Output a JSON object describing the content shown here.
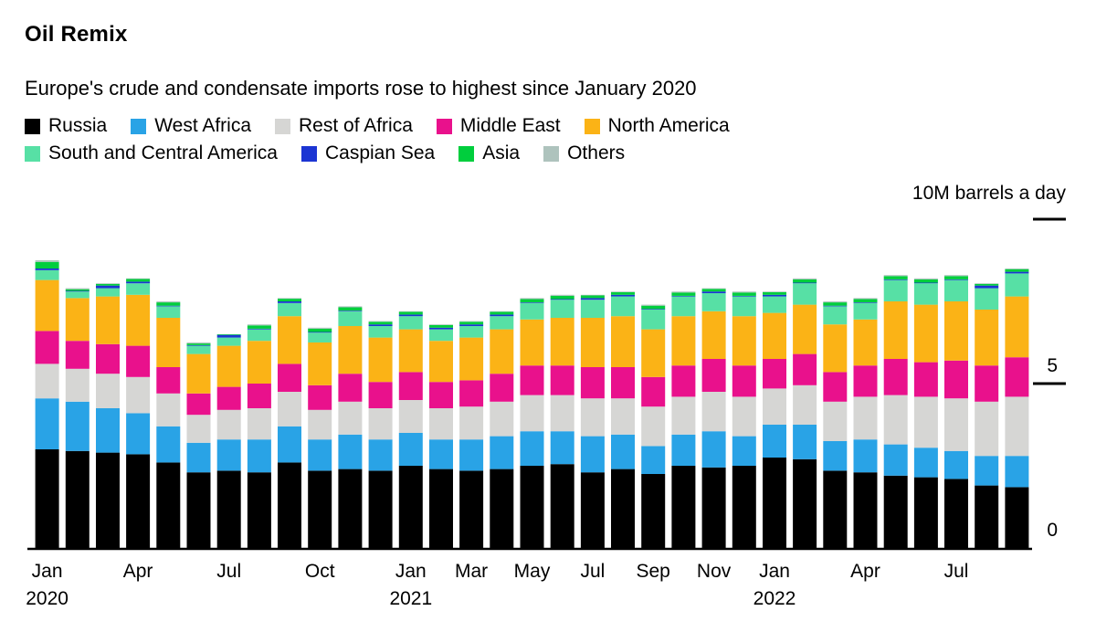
{
  "chart_data": {
    "type": "bar",
    "stacked": true,
    "title": "Oil Remix",
    "subtitle": "Europe's crude and condensate imports rose to highest since January 2020",
    "unit_label": "10M barrels a day",
    "legend_position": "top",
    "legend_rows": [
      5,
      4
    ],
    "grid": false,
    "ylim": [
      0,
      10
    ],
    "y_axis": {
      "ticks": [
        {
          "value": 10,
          "label": "",
          "dash": true
        },
        {
          "value": 5,
          "label": "5",
          "dash": true
        },
        {
          "value": 0,
          "label": "0",
          "dash": false
        }
      ]
    },
    "x": [
      "Jan 2020",
      "Feb 2020",
      "Mar 2020",
      "Apr 2020",
      "May 2020",
      "Jun 2020",
      "Jul 2020",
      "Aug 2020",
      "Sep 2020",
      "Oct 2020",
      "Nov 2020",
      "Dec 2020",
      "Jan 2021",
      "Feb 2021",
      "Mar 2021",
      "Apr 2021",
      "May 2021",
      "Jun 2021",
      "Jul 2021",
      "Aug 2021",
      "Sep 2021",
      "Oct 2021",
      "Nov 2021",
      "Dec 2021",
      "Jan 2022",
      "Feb 2022",
      "Mar 2022",
      "Apr 2022",
      "May 2022",
      "Jun 2022",
      "Jul 2022",
      "Aug 2022",
      "Sep 2022"
    ],
    "x_ticks": [
      {
        "index": 0,
        "line1": "Jan",
        "line2": "2020"
      },
      {
        "index": 3,
        "line1": "Apr"
      },
      {
        "index": 6,
        "line1": "Jul"
      },
      {
        "index": 9,
        "line1": "Oct"
      },
      {
        "index": 12,
        "line1": "Jan",
        "line2": "2021"
      },
      {
        "index": 14,
        "line1": "Mar"
      },
      {
        "index": 16,
        "line1": "May"
      },
      {
        "index": 18,
        "line1": "Jul"
      },
      {
        "index": 20,
        "line1": "Sep"
      },
      {
        "index": 22,
        "line1": "Nov"
      },
      {
        "index": 24,
        "line1": "Jan",
        "line2": "2022"
      },
      {
        "index": 27,
        "line1": "Apr"
      },
      {
        "index": 30,
        "line1": "Jul"
      }
    ],
    "series": [
      {
        "name": "Russia",
        "color": "#000000",
        "values": [
          3.0,
          2.95,
          2.9,
          2.85,
          2.6,
          2.3,
          2.35,
          2.3,
          2.6,
          2.35,
          2.4,
          2.35,
          2.5,
          2.4,
          2.35,
          2.4,
          2.5,
          2.55,
          2.3,
          2.4,
          2.25,
          2.5,
          2.45,
          2.5,
          2.75,
          2.7,
          2.35,
          2.3,
          2.2,
          2.15,
          2.1,
          1.9,
          1.85
        ]
      },
      {
        "name": "West Africa",
        "color": "#29A3E6",
        "values": [
          1.55,
          1.5,
          1.35,
          1.25,
          1.1,
          0.9,
          0.95,
          1.0,
          1.1,
          0.95,
          1.05,
          0.95,
          1.0,
          0.9,
          0.95,
          1.0,
          1.05,
          1.0,
          1.1,
          1.05,
          0.85,
          0.95,
          1.1,
          0.9,
          1.0,
          1.05,
          0.9,
          1.0,
          0.95,
          0.9,
          0.85,
          0.9,
          0.95
        ]
      },
      {
        "name": "Rest of Africa",
        "color": "#D6D6D4",
        "values": [
          1.05,
          1.0,
          1.05,
          1.1,
          1.0,
          0.85,
          0.9,
          0.95,
          1.05,
          0.9,
          1.0,
          0.95,
          1.0,
          0.95,
          1.0,
          1.05,
          1.1,
          1.1,
          1.15,
          1.1,
          1.2,
          1.15,
          1.2,
          1.2,
          1.1,
          1.2,
          1.2,
          1.3,
          1.5,
          1.55,
          1.6,
          1.65,
          1.8
        ]
      },
      {
        "name": "Middle East",
        "color": "#E9118C",
        "values": [
          1.0,
          0.85,
          0.9,
          0.95,
          0.8,
          0.65,
          0.7,
          0.75,
          0.85,
          0.75,
          0.85,
          0.8,
          0.85,
          0.8,
          0.8,
          0.85,
          0.9,
          0.9,
          0.95,
          0.95,
          0.9,
          0.95,
          1.0,
          0.95,
          0.9,
          0.95,
          0.9,
          0.95,
          1.1,
          1.05,
          1.15,
          1.1,
          1.2
        ]
      },
      {
        "name": "North America",
        "color": "#FBB316",
        "values": [
          1.55,
          1.3,
          1.45,
          1.55,
          1.5,
          1.2,
          1.25,
          1.3,
          1.45,
          1.3,
          1.45,
          1.35,
          1.3,
          1.25,
          1.3,
          1.35,
          1.4,
          1.45,
          1.5,
          1.55,
          1.45,
          1.5,
          1.45,
          1.5,
          1.4,
          1.5,
          1.45,
          1.4,
          1.75,
          1.75,
          1.8,
          1.7,
          1.85
        ]
      },
      {
        "name": "South and Central America",
        "color": "#57E0A5",
        "values": [
          0.3,
          0.2,
          0.25,
          0.35,
          0.35,
          0.25,
          0.25,
          0.35,
          0.4,
          0.3,
          0.45,
          0.35,
          0.4,
          0.35,
          0.35,
          0.4,
          0.5,
          0.55,
          0.55,
          0.6,
          0.6,
          0.6,
          0.55,
          0.6,
          0.5,
          0.65,
          0.55,
          0.5,
          0.65,
          0.65,
          0.65,
          0.65,
          0.7
        ]
      },
      {
        "name": "Caspian Sea",
        "color": "#1C35D3",
        "values": [
          0.05,
          0.02,
          0.08,
          0.05,
          0.02,
          0.02,
          0.08,
          0.02,
          0.05,
          0.02,
          0.02,
          0.05,
          0.05,
          0.05,
          0.05,
          0.05,
          0.02,
          0.02,
          0.05,
          0.05,
          0.02,
          0.02,
          0.05,
          0.02,
          0.05,
          0.02,
          0.02,
          0.02,
          0.02,
          0.02,
          0.02,
          0.08,
          0.05
        ]
      },
      {
        "name": "Asia",
        "color": "#00CE3D",
        "values": [
          0.2,
          0.05,
          0.05,
          0.08,
          0.1,
          0.05,
          0.02,
          0.1,
          0.08,
          0.1,
          0.1,
          0.08,
          0.08,
          0.08,
          0.08,
          0.08,
          0.1,
          0.1,
          0.08,
          0.08,
          0.1,
          0.1,
          0.08,
          0.1,
          0.08,
          0.1,
          0.1,
          0.1,
          0.1,
          0.1,
          0.1,
          0.05,
          0.08
        ]
      },
      {
        "name": "Others",
        "color": "#AEC3BD",
        "values": [
          0.05,
          0.03,
          0.02,
          0.02,
          0.03,
          0.03,
          0.0,
          0.03,
          0.02,
          0.03,
          0.03,
          0.02,
          0.02,
          0.02,
          0.02,
          0.02,
          0.03,
          0.03,
          0.02,
          0.02,
          0.03,
          0.03,
          0.02,
          0.03,
          0.02,
          0.03,
          0.03,
          0.03,
          0.03,
          0.03,
          0.03,
          0.02,
          0.02
        ]
      }
    ]
  }
}
